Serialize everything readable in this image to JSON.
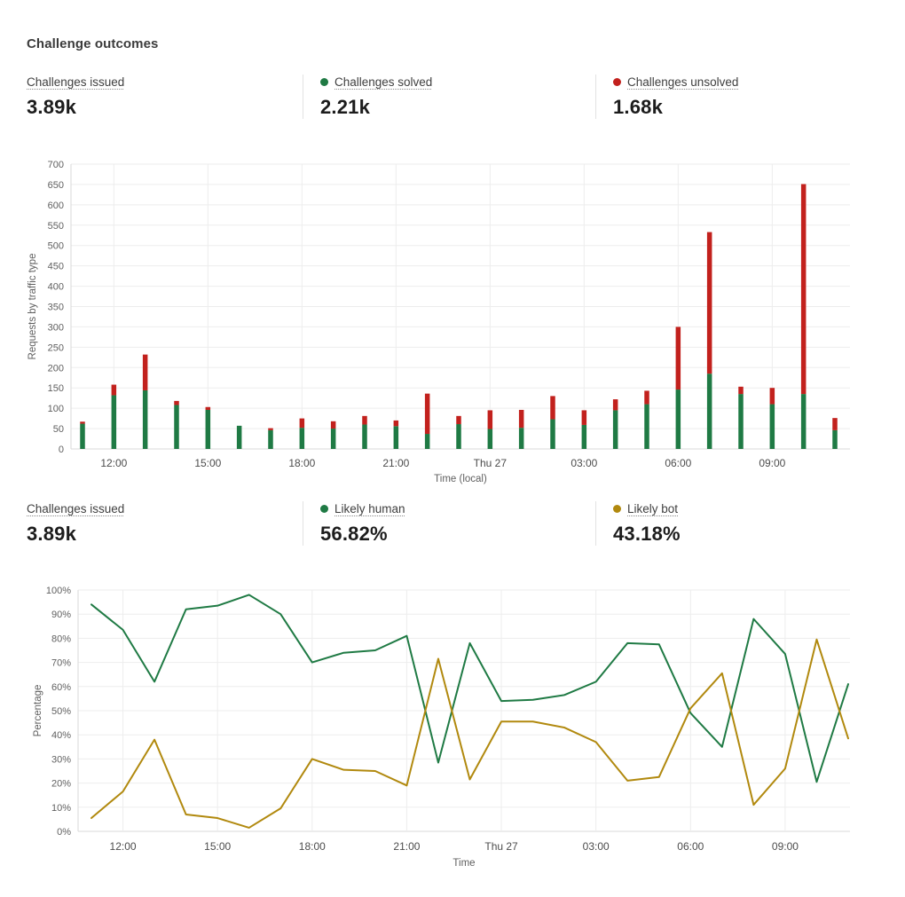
{
  "page": {
    "title": "Challenge outcomes"
  },
  "colors": {
    "green": "#1f7a44",
    "red": "#c2211d",
    "gold": "#b1890e",
    "grid": "#ededed",
    "axis_line": "#d8d8d8",
    "divider": "#e2e2e2",
    "label_text": "#3f3f3f",
    "value_text": "#1c1c1c"
  },
  "stats_row1": [
    {
      "label": "Challenges issued",
      "value": "3.89k",
      "dot": null
    },
    {
      "label": "Challenges solved",
      "value": "2.21k",
      "dot": "green"
    },
    {
      "label": "Challenges unsolved",
      "value": "1.68k",
      "dot": "red"
    }
  ],
  "stats_row2": [
    {
      "label": "Challenges issued",
      "value": "3.89k",
      "dot": null
    },
    {
      "label": "Likely human",
      "value": "56.82%",
      "dot": "green"
    },
    {
      "label": "Likely bot",
      "value": "43.18%",
      "dot": "gold"
    }
  ],
  "chart_data": [
    {
      "type": "bar",
      "stacked": true,
      "title": "",
      "xlabel": "Time (local)",
      "ylabel": "Requests by traffic type",
      "ylim": [
        0,
        700
      ],
      "ytick_step": 50,
      "ytick_suffix": "",
      "grid": true,
      "legend_position": "none",
      "categories": [
        "11:00",
        "12:00",
        "13:00",
        "14:00",
        "15:00",
        "16:00",
        "17:00",
        "18:00",
        "19:00",
        "20:00",
        "21:00",
        "22:00",
        "23:00",
        "Thu 27",
        "01:00",
        "02:00",
        "03:00",
        "04:00",
        "05:00",
        "06:00",
        "07:00",
        "08:00",
        "09:00",
        "10:00",
        "11:00"
      ],
      "xticks": [
        {
          "i": 1,
          "label": "12:00"
        },
        {
          "i": 4,
          "label": "15:00"
        },
        {
          "i": 7,
          "label": "18:00"
        },
        {
          "i": 10,
          "label": "21:00"
        },
        {
          "i": 13,
          "label": "Thu 27"
        },
        {
          "i": 16,
          "label": "03:00"
        },
        {
          "i": 19,
          "label": "06:00"
        },
        {
          "i": 22,
          "label": "09:00"
        }
      ],
      "series": [
        {
          "name": "Challenges solved",
          "color": "green",
          "values": [
            62,
            132,
            144,
            108,
            96,
            57,
            46,
            52,
            50,
            60,
            56,
            37,
            61,
            49,
            52,
            73,
            59,
            95,
            110,
            146,
            185,
            135,
            110,
            135,
            46
          ]
        },
        {
          "name": "Challenges unsolved",
          "color": "red",
          "values": [
            5,
            26,
            88,
            10,
            7,
            0,
            5,
            23,
            18,
            21,
            14,
            99,
            20,
            46,
            44,
            57,
            36,
            27,
            33,
            154,
            348,
            18,
            40,
            516,
            30
          ]
        }
      ]
    },
    {
      "type": "line",
      "title": "",
      "xlabel": "Time",
      "ylabel": "Percentage",
      "ylim": [
        0,
        100
      ],
      "ytick_step": 10,
      "ytick_suffix": "%",
      "grid": true,
      "legend_position": "none",
      "categories": [
        "11:00",
        "12:00",
        "13:00",
        "14:00",
        "15:00",
        "16:00",
        "17:00",
        "18:00",
        "19:00",
        "20:00",
        "21:00",
        "22:00",
        "23:00",
        "Thu 27",
        "01:00",
        "02:00",
        "03:00",
        "04:00",
        "05:00",
        "06:00",
        "07:00",
        "08:00",
        "09:00",
        "10:00",
        "11:00"
      ],
      "xticks": [
        {
          "i": 1,
          "label": "12:00"
        },
        {
          "i": 4,
          "label": "15:00"
        },
        {
          "i": 7,
          "label": "18:00"
        },
        {
          "i": 10,
          "label": "21:00"
        },
        {
          "i": 13,
          "label": "Thu 27"
        },
        {
          "i": 16,
          "label": "03:00"
        },
        {
          "i": 19,
          "label": "06:00"
        },
        {
          "i": 22,
          "label": "09:00"
        }
      ],
      "series": [
        {
          "name": "Likely human",
          "color": "green",
          "values": [
            94,
            83.5,
            62,
            92,
            93.5,
            98,
            90,
            70,
            74,
            75,
            81,
            28.5,
            78,
            54,
            54.5,
            56.5,
            62,
            78,
            77.5,
            49,
            35,
            88,
            73.5,
            20.5,
            61
          ]
        },
        {
          "name": "Likely bot",
          "color": "gold",
          "values": [
            5.5,
            16.5,
            38,
            7,
            5.5,
            1.5,
            9.5,
            30,
            25.5,
            25,
            19,
            71.5,
            21.5,
            45.5,
            45.5,
            43,
            37,
            21,
            22.5,
            51,
            65.5,
            11,
            26,
            79.5,
            38.5
          ]
        }
      ]
    }
  ]
}
